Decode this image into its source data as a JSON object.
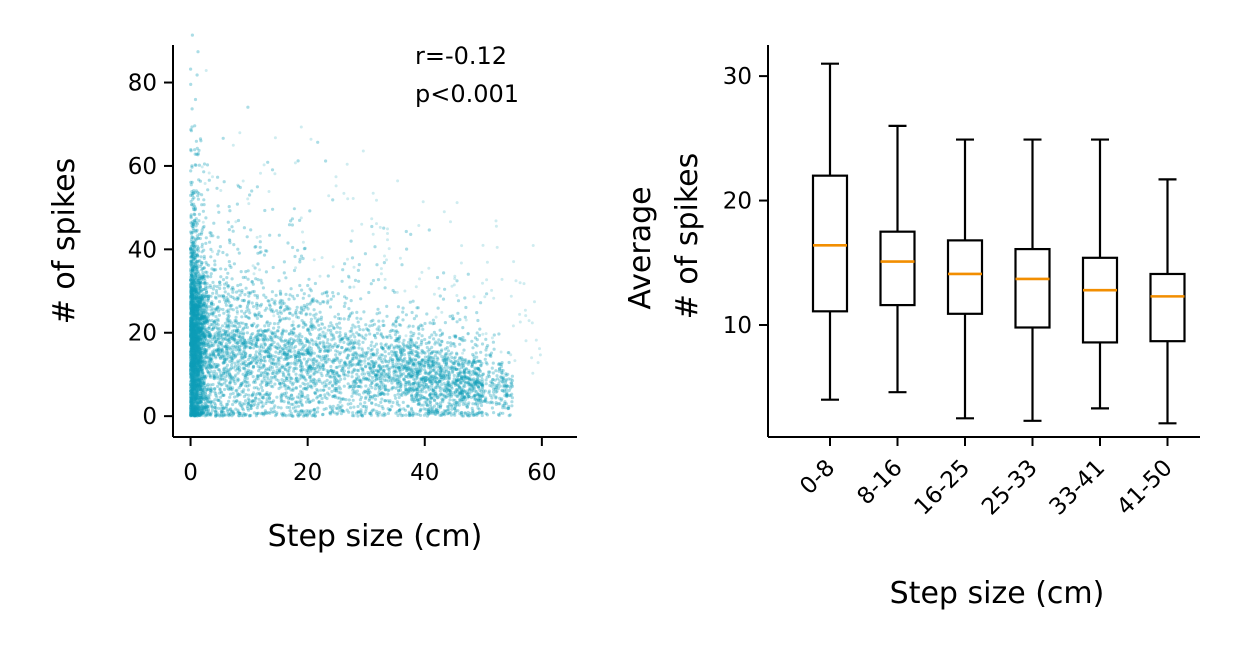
{
  "chart_data": [
    {
      "type": "scatter",
      "title": "",
      "xlabel": "Step size (cm)",
      "ylabel": "# of spikes",
      "xlim": [
        -3,
        66
      ],
      "ylim": [
        -5,
        89
      ],
      "xticks": [
        0,
        20,
        40,
        60
      ],
      "yticks": [
        0,
        20,
        40,
        60,
        80
      ],
      "xtick_labels": [
        "0",
        "20",
        "40",
        "60"
      ],
      "ytick_labels": [
        "0",
        "20",
        "40",
        "60",
        "80"
      ],
      "point_color": "#0e9eb6",
      "grid": false,
      "annotations": [
        "r=-0.12",
        "p<0.001"
      ],
      "trend": {
        "description": "dense cloud, spikes decrease with step size",
        "x_range": [
          0,
          63
        ],
        "y_range": [
          0,
          84
        ]
      }
    },
    {
      "type": "box",
      "title": "",
      "xlabel": "Step size (cm)",
      "ylabel": [
        "Average",
        "# of spikes"
      ],
      "ylim": [
        1,
        32.5
      ],
      "yticks": [
        10,
        20,
        30
      ],
      "ytick_labels": [
        "10",
        "20",
        "30"
      ],
      "grid": false,
      "median_color": "#f28e00",
      "categories": [
        "0-8",
        "8-16",
        "16-25",
        "25-33",
        "33-41",
        "41-50"
      ],
      "boxes": [
        {
          "whislo": 4.0,
          "q1": 11.1,
          "med": 16.4,
          "q3": 22.0,
          "whishi": 31.0
        },
        {
          "whislo": 4.6,
          "q1": 11.6,
          "med": 15.1,
          "q3": 17.5,
          "whishi": 26.0
        },
        {
          "whislo": 2.5,
          "q1": 10.9,
          "med": 14.1,
          "q3": 16.8,
          "whishi": 24.9
        },
        {
          "whislo": 2.3,
          "q1": 9.8,
          "med": 13.7,
          "q3": 16.1,
          "whishi": 24.9
        },
        {
          "whislo": 3.3,
          "q1": 8.6,
          "med": 12.8,
          "q3": 15.4,
          "whishi": 24.9
        },
        {
          "whislo": 2.1,
          "q1": 8.7,
          "med": 12.3,
          "q3": 14.1,
          "whishi": 21.7
        }
      ]
    }
  ]
}
